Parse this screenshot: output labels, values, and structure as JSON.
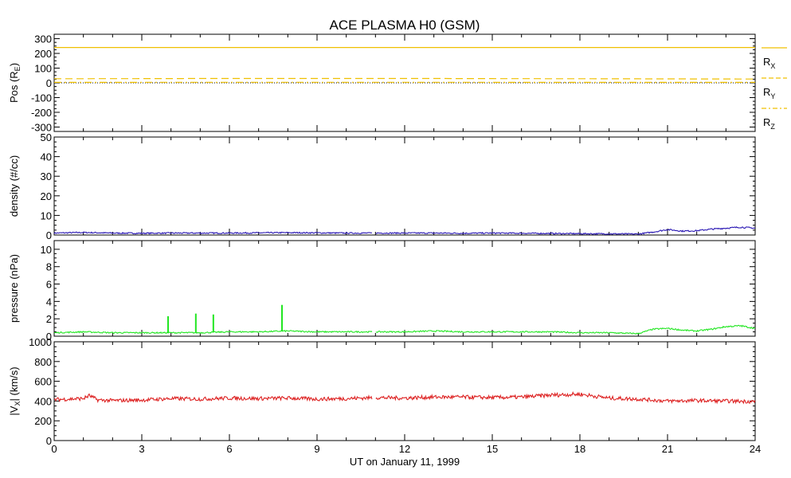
{
  "title": "ACE PLASMA H0 (GSM)",
  "colors": {
    "background": "#ffffff",
    "axes": "#000000",
    "position": "#f0c000",
    "density": "#2a18b4",
    "pressure": "#22e622",
    "velocity": "#dd2222"
  },
  "chart_data": [
    {
      "type": "line",
      "panel": "position",
      "ylabel": "Pos (R",
      "ylabel_sub": "E",
      "ylabel_end": ")",
      "ylim": [
        -330,
        330
      ],
      "yticks": [
        -300,
        -200,
        -100,
        0,
        100,
        200,
        300
      ],
      "ytick_labels": [
        "-300",
        "-200",
        "-100",
        "0",
        "100",
        "200",
        "300"
      ],
      "x": [
        0,
        6,
        12,
        18,
        24
      ],
      "series": [
        {
          "name": "R",
          "sub": "X",
          "style": "solid",
          "values": [
            240,
            240,
            240,
            240,
            240
          ]
        },
        {
          "name": "R",
          "sub": "Y",
          "style": "dashed",
          "values": [
            28,
            30,
            30,
            28,
            26
          ]
        },
        {
          "name": "R",
          "sub": "Z",
          "style": "dashdot",
          "values": [
            3,
            4,
            4,
            3,
            3
          ]
        }
      ],
      "reference_line": {
        "y": 0,
        "style": "dotted"
      }
    },
    {
      "type": "line",
      "panel": "density",
      "ylabel": "density (#/cc)",
      "ylim": [
        0,
        50
      ],
      "yticks": [
        0,
        10,
        20,
        30,
        40,
        50
      ],
      "ytick_labels": [
        "0",
        "10",
        "20",
        "30",
        "40",
        "50"
      ],
      "x": [
        0,
        1,
        2,
        3,
        4,
        5,
        6,
        7,
        8,
        9,
        10,
        11,
        12,
        13,
        14,
        15,
        16,
        17,
        18,
        19,
        20,
        20.5,
        21,
        21.5,
        22,
        22.5,
        23,
        23.5,
        24
      ],
      "values": [
        1.0,
        1.3,
        1.0,
        0.9,
        1.0,
        1.0,
        1.0,
        1.1,
        1.2,
        1.1,
        1.0,
        1.0,
        1.0,
        1.0,
        0.9,
        1.0,
        0.9,
        0.8,
        0.7,
        0.6,
        0.5,
        1.5,
        2.8,
        2.0,
        2.2,
        3.0,
        3.5,
        4.0,
        3.5
      ],
      "gaps": [
        [
          10.9,
          11.0
        ]
      ]
    },
    {
      "type": "line",
      "panel": "pressure",
      "ylabel": "pressure (nPa)",
      "ylim": [
        0,
        11
      ],
      "yticks": [
        0,
        2,
        4,
        6,
        8,
        10
      ],
      "ytick_labels": [
        "0",
        "2",
        "4",
        "6",
        "8",
        "10"
      ],
      "x": [
        0,
        1,
        2,
        3,
        4,
        5,
        6,
        7,
        8,
        9,
        10,
        11,
        12,
        13,
        14,
        15,
        16,
        17,
        18,
        19,
        20,
        20.5,
        21,
        21.5,
        22,
        22.5,
        23,
        23.5,
        24
      ],
      "values": [
        0.4,
        0.5,
        0.4,
        0.4,
        0.4,
        0.4,
        0.5,
        0.5,
        0.6,
        0.5,
        0.5,
        0.5,
        0.5,
        0.6,
        0.5,
        0.5,
        0.5,
        0.5,
        0.4,
        0.4,
        0.3,
        0.8,
        0.9,
        0.7,
        0.6,
        0.8,
        1.1,
        1.2,
        0.9
      ],
      "spikes": [
        {
          "x": 3.9,
          "y": 2.3
        },
        {
          "x": 4.85,
          "y": 2.6
        },
        {
          "x": 5.45,
          "y": 2.5
        },
        {
          "x": 7.8,
          "y": 3.6
        }
      ],
      "gaps": [
        [
          10.9,
          11.0
        ]
      ]
    },
    {
      "type": "line",
      "panel": "velocity",
      "ylabel": "|V",
      "ylabel_sub": "X",
      "ylabel_end": "| (km/s)",
      "ylim": [
        0,
        1000
      ],
      "yticks": [
        0,
        200,
        400,
        600,
        800,
        1000
      ],
      "ytick_labels": [
        "0",
        "200",
        "400",
        "600",
        "800",
        "1000"
      ],
      "x": [
        0,
        0.5,
        1,
        1.2,
        1.5,
        2,
        3,
        4,
        5,
        6,
        7,
        8,
        9,
        10,
        11,
        12,
        13,
        14,
        15,
        16,
        17,
        17.5,
        18,
        18.5,
        19,
        20,
        21,
        22,
        23,
        24
      ],
      "values": [
        415,
        420,
        425,
        455,
        410,
        405,
        410,
        425,
        420,
        430,
        425,
        430,
        420,
        425,
        435,
        430,
        440,
        440,
        435,
        440,
        460,
        465,
        470,
        450,
        430,
        420,
        400,
        405,
        400,
        395
      ],
      "gaps": [
        [
          10.9,
          11.0
        ]
      ]
    }
  ],
  "xaxis": {
    "xlim": [
      0,
      24
    ],
    "xticks": [
      0,
      3,
      6,
      9,
      12,
      15,
      18,
      21,
      24
    ],
    "xtick_labels": [
      "0",
      "3",
      "6",
      "9",
      "12",
      "15",
      "18",
      "21",
      "24"
    ],
    "xlabel": "UT on January 11, 1999"
  }
}
